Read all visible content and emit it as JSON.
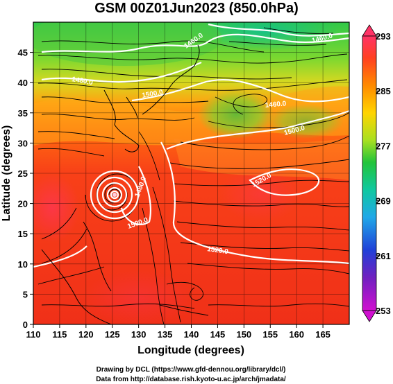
{
  "title": "GSM 00Z01Jun2023 (850.0hPa)",
  "axes": {
    "xlabel": "Longitude (degrees)",
    "ylabel": "Latitude  (degrees)",
    "x_ticks": [
      "110",
      "115",
      "120",
      "125",
      "130",
      "135",
      "140",
      "145",
      "150",
      "155",
      "160",
      "165"
    ],
    "y_ticks": [
      "0",
      "5",
      "10",
      "15",
      "20",
      "25",
      "30",
      "35",
      "40",
      "45"
    ]
  },
  "colorbar": {
    "labels": [
      "293",
      "285",
      "277",
      "269",
      "261",
      "253"
    ],
    "colors": [
      "#ff3366",
      "#ff4020",
      "#ff8a00",
      "#ffd400",
      "#a8e020",
      "#22c43a",
      "#10c8a0",
      "#20a8e8",
      "#2040d8",
      "#7020c0",
      "#d010d0"
    ]
  },
  "contour_labels": [
    "1460.0",
    "1480.0",
    "1460.0",
    "1500.0",
    "1460.0",
    "1520.0",
    "1500.0",
    "1480.0",
    "1500.0",
    "1520.0"
  ],
  "credits": {
    "line1": "Drawing by DCL (https://www.gfd-dennou.org/library/dcl/)",
    "line2": "Data from http://database.rish.kyoto-u.ac.jp/arch/jmadata/"
  },
  "map_data": {
    "type": "heatmap",
    "variable": "temperature (K) with streamlines and geopotential height contours",
    "xlim": [
      110,
      170
    ],
    "ylim": [
      0,
      50
    ],
    "clim": [
      253,
      293
    ],
    "typhoon_center": {
      "lon": 125.5,
      "lat": 24.3
    }
  }
}
